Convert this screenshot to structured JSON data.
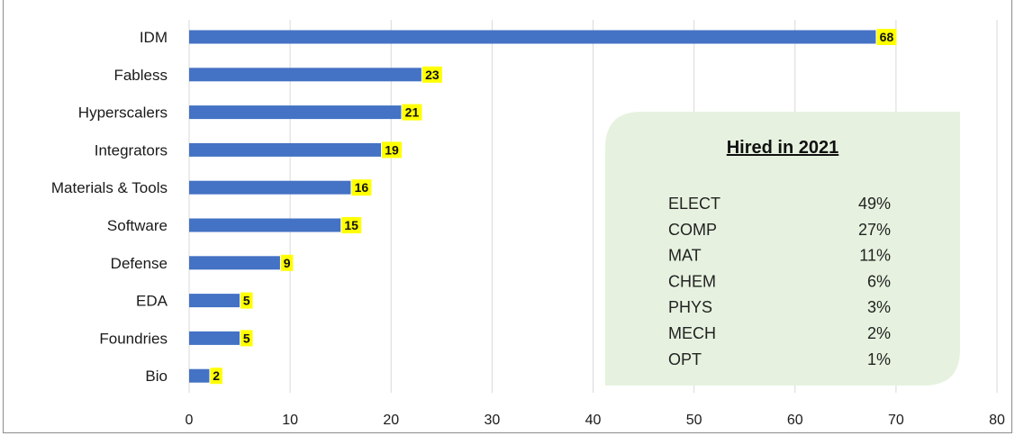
{
  "chart_data": {
    "type": "bar",
    "orientation": "horizontal",
    "categories": [
      "IDM",
      "Fabless",
      "Hyperscalers",
      "Integrators",
      "Materials & Tools",
      "Software",
      "Defense",
      "EDA",
      "Foundries",
      "Bio"
    ],
    "values": [
      68,
      23,
      21,
      19,
      16,
      15,
      9,
      5,
      5,
      2
    ],
    "data_labels": [
      "68",
      "23",
      "21",
      "19",
      "16",
      "15",
      "9",
      "5",
      "5",
      "2"
    ],
    "xlim": [
      0,
      80
    ],
    "xticks": [
      "0",
      "10",
      "20",
      "30",
      "40",
      "50",
      "60",
      "70",
      "80"
    ],
    "grid": "vertical",
    "bar_color": "#4472c4",
    "label_highlight_color": "#ffff00"
  },
  "inset": {
    "title": "Hired in 2021",
    "background": "#e6f2df",
    "rows": [
      {
        "label": "ELECT",
        "value": "49%"
      },
      {
        "label": "COMP",
        "value": "27%"
      },
      {
        "label": "MAT",
        "value": "11%"
      },
      {
        "label": "CHEM",
        "value": "6%"
      },
      {
        "label": "PHYS",
        "value": "3%"
      },
      {
        "label": "MECH",
        "value": "2%"
      },
      {
        "label": "OPT",
        "value": "1%"
      }
    ]
  }
}
